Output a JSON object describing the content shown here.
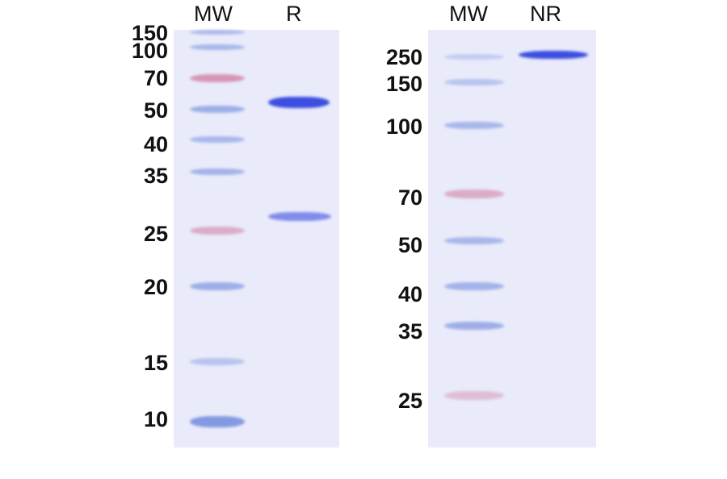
{
  "gels": [
    {
      "lanes": [
        "MW",
        "R"
      ],
      "ladder_kda": [
        "150",
        "100",
        "70",
        "50",
        "40",
        "35",
        "25",
        "20",
        "15",
        "10"
      ],
      "sample_bands": [
        {
          "lane": "R",
          "intensity": "strong",
          "approx_kda": "~55"
        },
        {
          "lane": "R",
          "intensity": "medium",
          "approx_kda": "~27"
        }
      ]
    },
    {
      "lanes": [
        "MW",
        "NR"
      ],
      "ladder_kda": [
        "250",
        "150",
        "100",
        "70",
        "50",
        "40",
        "35",
        "25"
      ],
      "sample_bands": [
        {
          "lane": "NR",
          "intensity": "strong",
          "approx_kda": "~250"
        }
      ]
    }
  ],
  "colors": {
    "gel": "#e9ebfa",
    "marker_blue": "#7e95e0",
    "marker_pink": "#d07a9e",
    "sample_band": "#3c4ee0"
  }
}
